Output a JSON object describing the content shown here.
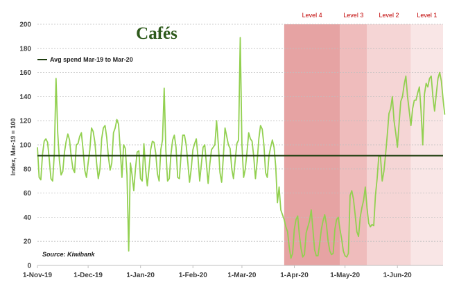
{
  "chart_data": {
    "type": "line",
    "title": "Cafés",
    "ylabel": "Index, Mar-19 = 100",
    "xlabel": "",
    "source": "Source: Kiwibank",
    "ylim": [
      0,
      200
    ],
    "yticks": [
      0,
      20,
      40,
      60,
      80,
      100,
      120,
      140,
      160,
      180,
      200
    ],
    "xlim": [
      "2019-11-01",
      "2020-06-28"
    ],
    "xticks": [
      {
        "date": "2019-11-01",
        "label": "1-Nov-19"
      },
      {
        "date": "2019-12-01",
        "label": "1-Dec-19"
      },
      {
        "date": "2020-01-01",
        "label": "1-Jan-20"
      },
      {
        "date": "2020-02-01",
        "label": "1-Feb-20"
      },
      {
        "date": "2020-03-01",
        "label": "1-Mar-20"
      },
      {
        "date": "2020-04-01",
        "label": "1-Apr-20"
      },
      {
        "date": "2020-05-01",
        "label": "1-May-20"
      },
      {
        "date": "2020-06-01",
        "label": "1-Jun-20"
      }
    ],
    "grid": true,
    "legend": "top-left",
    "avg_line": {
      "name": "Avg spend Mar-19 to Mar-20",
      "value": 91,
      "color": "#1e3d0f"
    },
    "series_color": "#92d050",
    "alert_levels": [
      {
        "label": "Level 4",
        "start": "2020-03-26",
        "end": "2020-04-28",
        "color": "#e6a3a3"
      },
      {
        "label": "Level 3",
        "start": "2020-04-28",
        "end": "2020-05-14",
        "color": "#efbcbc"
      },
      {
        "label": "Level 2",
        "start": "2020-05-14",
        "end": "2020-06-09",
        "color": "#f5d5d5"
      },
      {
        "label": "Level 1",
        "start": "2020-06-09",
        "end": "2020-06-28",
        "color": "#f9e6e6"
      }
    ],
    "series": [
      {
        "start_date": "2019-11-01",
        "step_days": 1,
        "values": [
          98,
          73,
          71,
          92,
          103,
          105,
          102,
          88,
          72,
          70,
          93,
          155,
          110,
          87,
          75,
          78,
          94,
          103,
          109,
          104,
          90,
          80,
          77,
          100,
          101,
          107,
          110,
          96,
          79,
          73,
          85,
          96,
          114,
          111,
          102,
          85,
          72,
          80,
          105,
          114,
          116,
          106,
          90,
          79,
          85,
          110,
          114,
          121,
          117,
          96,
          73,
          100,
          97,
          75,
          12,
          85,
          75,
          62,
          80,
          94,
          95,
          72,
          70,
          101,
          80,
          66,
          80,
          96,
          103,
          102,
          93,
          76,
          70,
          96,
          104,
          147,
          95,
          70,
          72,
          92,
          104,
          108,
          98,
          73,
          72,
          92,
          108,
          108,
          100,
          85,
          69,
          80,
          96,
          101,
          105,
          90,
          70,
          84,
          98,
          100,
          84,
          68,
          84,
          96,
          98,
          100,
          120,
          101,
          77,
          69,
          90,
          114,
          107,
          100,
          97,
          80,
          72,
          87,
          101,
          104,
          189,
          100,
          73,
          80,
          94,
          110,
          105,
          103,
          90,
          72,
          86,
          105,
          116,
          113,
          100,
          77,
          73,
          91,
          98,
          104,
          98,
          82,
          52,
          65,
          46,
          42,
          38,
          32,
          28,
          15,
          6,
          10,
          30,
          38,
          41,
          25,
          14,
          7,
          9,
          27,
          32,
          37,
          46,
          30,
          13,
          8,
          8,
          18,
          30,
          37,
          42,
          34,
          20,
          12,
          9,
          10,
          30,
          38,
          40,
          30,
          22,
          12,
          8,
          7,
          10,
          58,
          62,
          55,
          42,
          28,
          24,
          40,
          48,
          54,
          65,
          48,
          35,
          32,
          34,
          33,
          58,
          72,
          91,
          90,
          70,
          78,
          92,
          108,
          126,
          130,
          140,
          120,
          110,
          98,
          118,
          136,
          140,
          150,
          157,
          140,
          128,
          116,
          130,
          137,
          137,
          143,
          148,
          128,
          100,
          142,
          151,
          148,
          155,
          157,
          140,
          128,
          142,
          155,
          160,
          153,
          138,
          125
        ]
      }
    ]
  }
}
